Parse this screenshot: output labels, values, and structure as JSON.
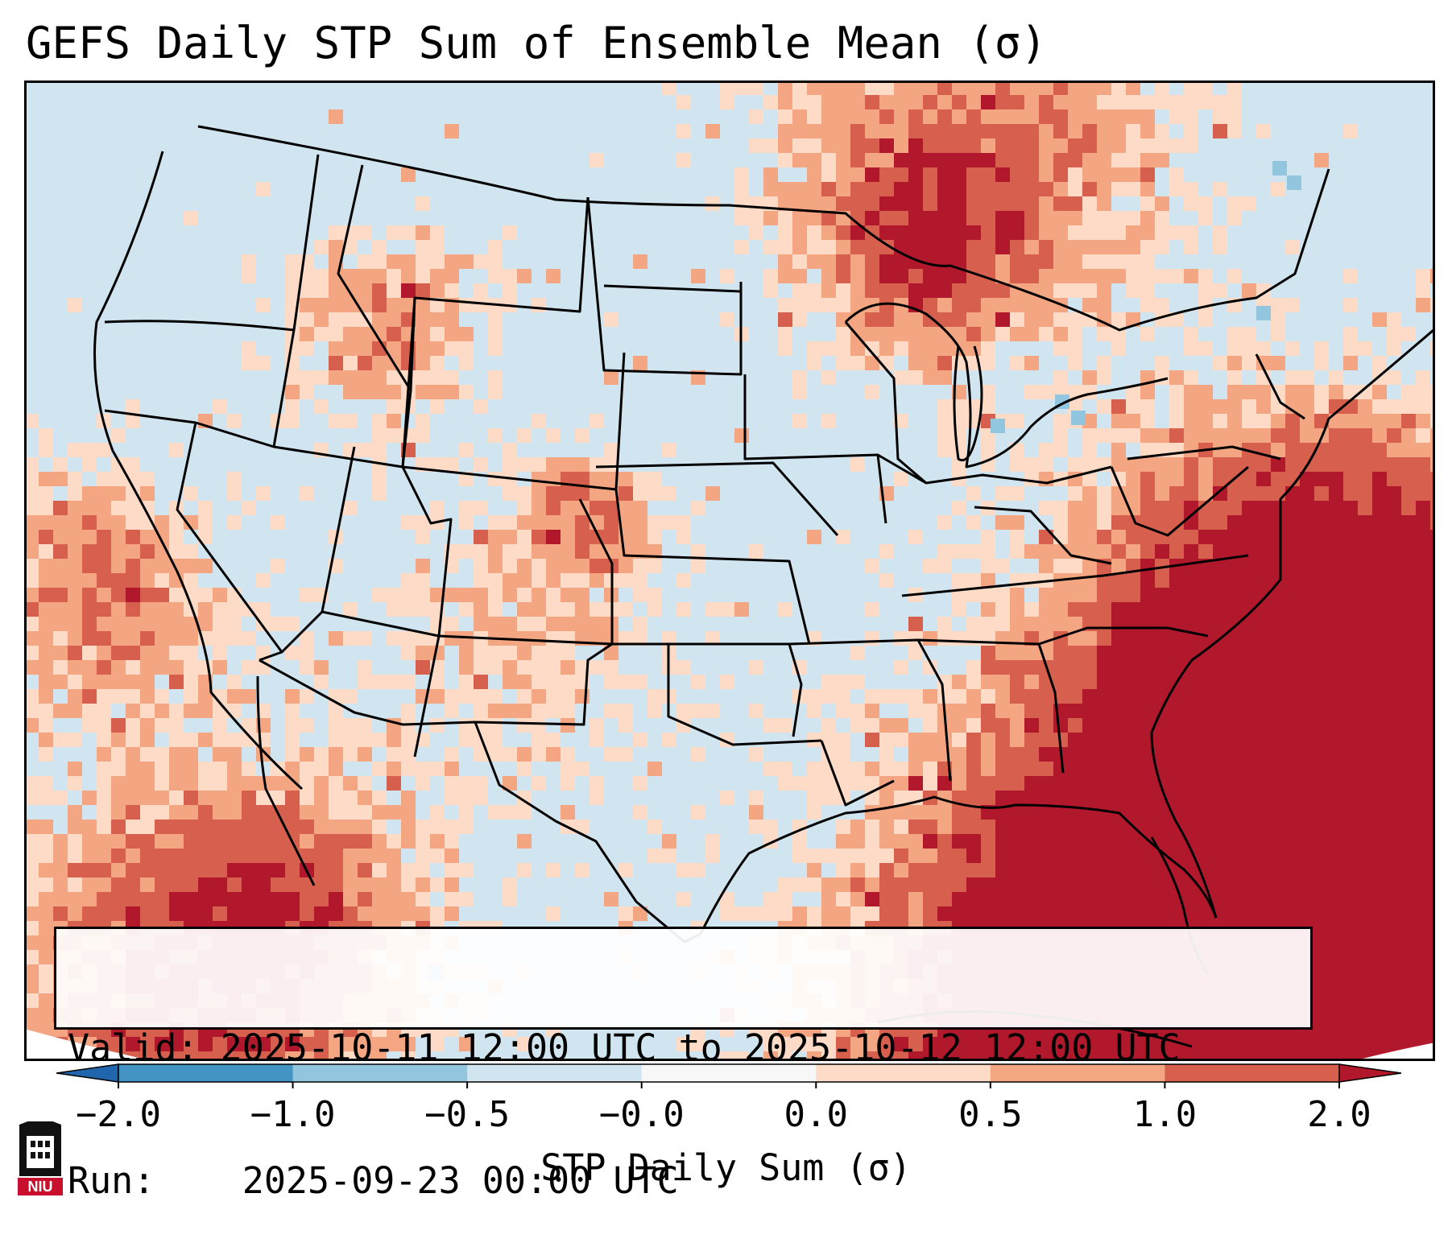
{
  "title": "GEFS Daily STP Sum of Ensemble Mean (σ)",
  "infobox": {
    "valid_label": "Valid:",
    "valid_value": "2025-10-11 12:00 UTC to 2025-10-12 12:00 UTC",
    "run_label": "Run:",
    "run_value": "2025-09-23 00:00 UTC"
  },
  "colorbar": {
    "label": "STP Daily Sum (σ)",
    "ticks": [
      "−2.0",
      "−1.0",
      "−0.5",
      "−0.0",
      "0.0",
      "0.5",
      "1.0",
      "2.0"
    ],
    "colors": [
      "#2166ac",
      "#4393c3",
      "#92c5de",
      "#d1e5f0",
      "#f7f7f7",
      "#fddbc7",
      "#f4a582",
      "#d6604d",
      "#b2182b"
    ]
  },
  "logo": {
    "text": "NIU",
    "icon": "niu-huskie-tower-icon"
  }
}
